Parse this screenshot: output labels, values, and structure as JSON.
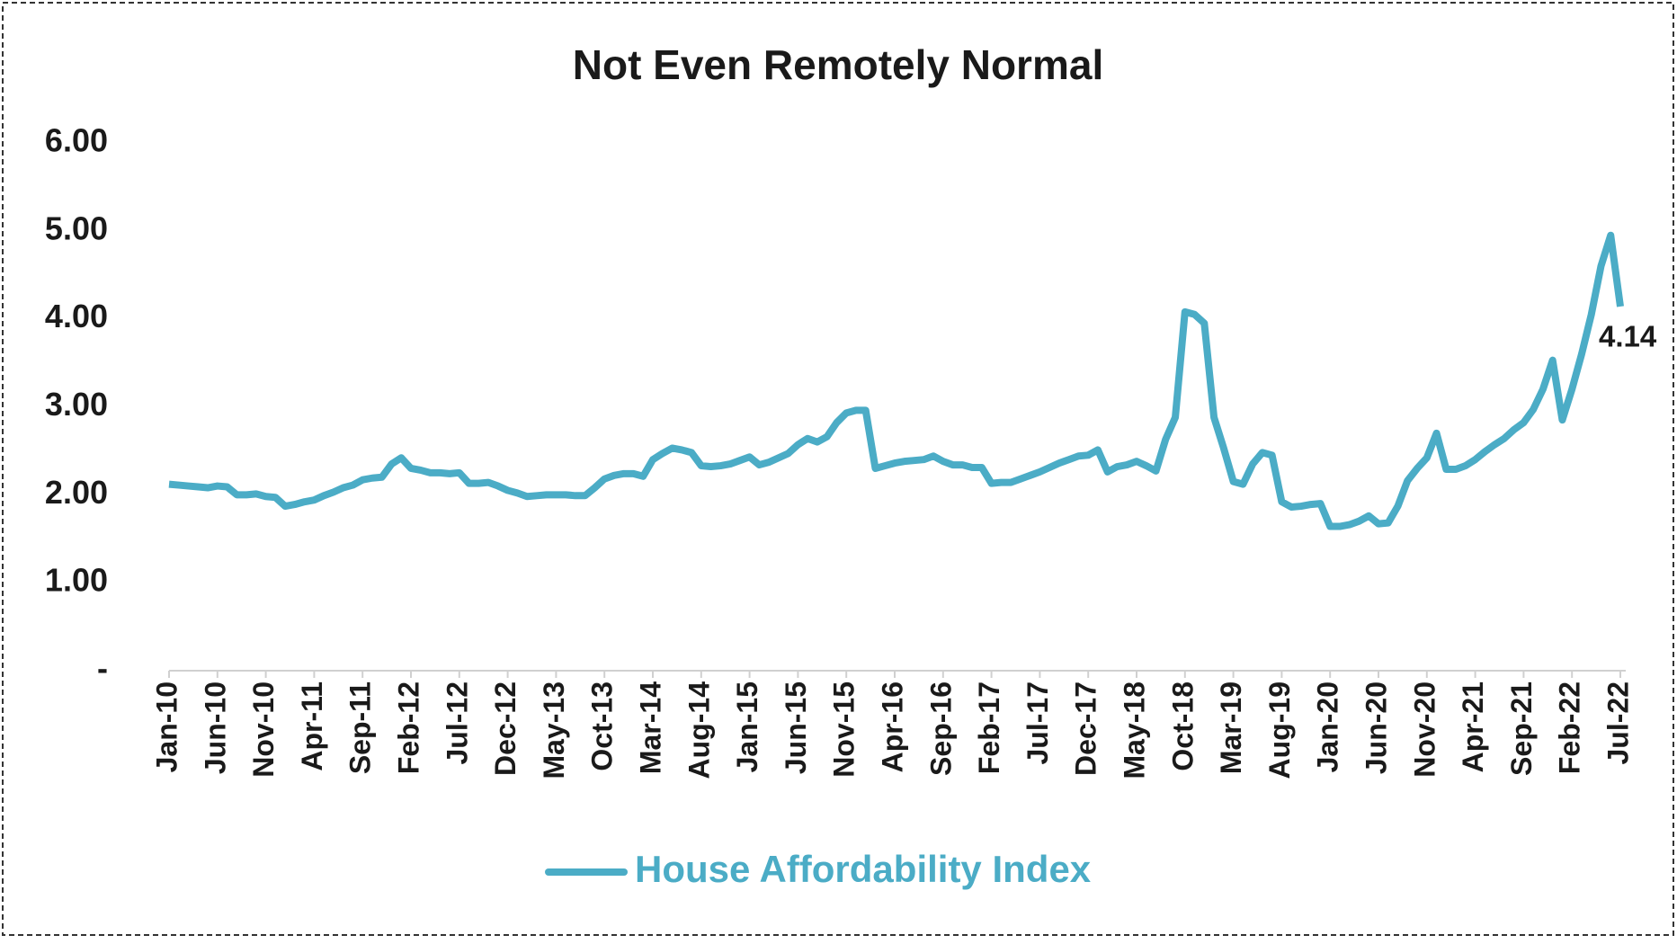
{
  "chart_data": {
    "type": "line",
    "title": "Not Even Remotely Normal",
    "categories": [
      "Jan-10",
      null,
      null,
      null,
      null,
      "Jun-10",
      null,
      null,
      null,
      null,
      "Nov-10",
      null,
      null,
      null,
      null,
      "Apr-11",
      null,
      null,
      null,
      null,
      "Sep-11",
      null,
      null,
      null,
      null,
      "Feb-12",
      null,
      null,
      null,
      null,
      "Jul-12",
      null,
      null,
      null,
      null,
      "Dec-12",
      null,
      null,
      null,
      null,
      "May-13",
      null,
      null,
      null,
      null,
      "Oct-13",
      null,
      null,
      null,
      null,
      "Mar-14",
      null,
      null,
      null,
      null,
      "Aug-14",
      null,
      null,
      null,
      null,
      "Jan-15",
      null,
      null,
      null,
      null,
      "Jun-15",
      null,
      null,
      null,
      null,
      "Nov-15",
      null,
      null,
      null,
      null,
      "Apr-16",
      null,
      null,
      null,
      null,
      "Sep-16",
      null,
      null,
      null,
      null,
      "Feb-17",
      null,
      null,
      null,
      null,
      "Jul-17",
      null,
      null,
      null,
      null,
      "Dec-17",
      null,
      null,
      null,
      null,
      "May-18",
      null,
      null,
      null,
      null,
      "Oct-18",
      null,
      null,
      null,
      null,
      "Mar-19",
      null,
      null,
      null,
      null,
      "Aug-19",
      null,
      null,
      null,
      null,
      "Jan-20",
      null,
      null,
      null,
      null,
      "Jun-20",
      null,
      null,
      null,
      null,
      "Nov-20",
      null,
      null,
      null,
      null,
      "Apr-21",
      null,
      null,
      null,
      null,
      "Sep-21",
      null,
      null,
      null,
      null,
      "Feb-22",
      null,
      null,
      null,
      null,
      "Jul-22"
    ],
    "series": [
      {
        "name": "House Affordability Index",
        "color": "#4bacc6",
        "values": [
          2.12,
          2.11,
          2.1,
          2.09,
          2.08,
          2.1,
          2.09,
          2.0,
          2.0,
          2.01,
          1.98,
          1.97,
          1.87,
          1.89,
          1.92,
          1.94,
          1.99,
          2.03,
          2.08,
          2.11,
          2.17,
          2.19,
          2.2,
          2.35,
          2.42,
          2.3,
          2.28,
          2.25,
          2.25,
          2.24,
          2.25,
          2.13,
          2.13,
          2.14,
          2.1,
          2.05,
          2.02,
          1.98,
          1.99,
          2.0,
          2.0,
          2.0,
          1.99,
          1.99,
          2.08,
          2.18,
          2.22,
          2.24,
          2.24,
          2.21,
          2.4,
          2.47,
          2.53,
          2.51,
          2.48,
          2.33,
          2.32,
          2.33,
          2.35,
          2.39,
          2.43,
          2.34,
          2.37,
          2.42,
          2.47,
          2.57,
          2.64,
          2.6,
          2.66,
          2.82,
          2.93,
          2.96,
          2.96,
          2.3,
          2.33,
          2.36,
          2.38,
          2.39,
          2.4,
          2.44,
          2.38,
          2.34,
          2.34,
          2.31,
          2.31,
          2.13,
          2.14,
          2.14,
          2.18,
          2.22,
          2.26,
          2.31,
          2.36,
          2.4,
          2.44,
          2.45,
          2.51,
          2.26,
          2.32,
          2.34,
          2.38,
          2.33,
          2.27,
          2.63,
          2.88,
          4.08,
          4.05,
          3.95,
          2.88,
          2.53,
          2.15,
          2.12,
          2.35,
          2.48,
          2.45,
          1.92,
          1.86,
          1.87,
          1.89,
          1.9,
          1.64,
          1.64,
          1.66,
          1.7,
          1.76,
          1.67,
          1.68,
          1.87,
          2.16,
          2.3,
          2.42,
          2.7,
          2.29,
          2.29,
          2.33,
          2.4,
          2.49,
          2.57,
          2.64,
          2.74,
          2.82,
          2.97,
          3.2,
          3.53,
          2.85,
          3.2,
          3.6,
          4.05,
          4.6,
          4.95,
          4.14
        ]
      }
    ],
    "ylim": [
      0,
      6
    ],
    "yticks": [
      {
        "value": 0,
        "label": "-"
      },
      {
        "value": 1,
        "label": "1.00"
      },
      {
        "value": 2,
        "label": "2.00"
      },
      {
        "value": 3,
        "label": "3.00"
      },
      {
        "value": 4,
        "label": "4.00"
      },
      {
        "value": 5,
        "label": "5.00"
      },
      {
        "value": 6,
        "label": "6.00"
      }
    ],
    "grid": false,
    "legend": "bottom"
  }
}
